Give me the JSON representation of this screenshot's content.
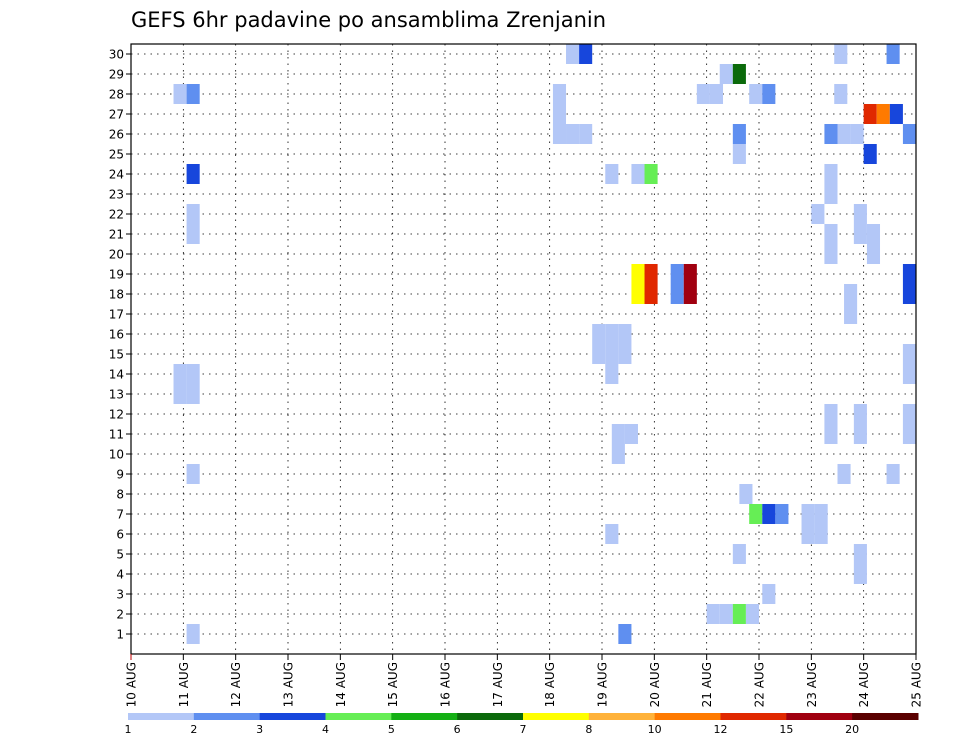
{
  "chart_data": {
    "type": "heatmap",
    "title": "GEFS 6hr padavine po ansamblima Zrenjanin",
    "xlabel": "",
    "ylabel": "",
    "x_ticks": [
      "10 AUG",
      "11 AUG",
      "12 AUG",
      "13 AUG",
      "14 AUG",
      "15 AUG",
      "16 AUG",
      "17 AUG",
      "18 AUG",
      "19 AUG",
      "20 AUG",
      "21 AUG",
      "22 AUG",
      "23 AUG",
      "24 AUG",
      "25 AUG"
    ],
    "x_range_days": [
      0,
      15
    ],
    "steps_per_day": 4,
    "y_members": [
      1,
      30
    ],
    "grid": "dotted",
    "colorbar": {
      "labels": [
        "1",
        "2",
        "3",
        "4",
        "5",
        "6",
        "7",
        "8",
        "10",
        "12",
        "15",
        "20"
      ],
      "colors": [
        "#b3c7f7",
        "#5f8ff0",
        "#1746dc",
        "#66ee55",
        "#14b014",
        "#0b6a0b",
        "#ffff00",
        "#ffb23a",
        "#ff7a00",
        "#e02800",
        "#a00010",
        "#5a0000"
      ]
    },
    "cells": [
      {
        "m": 30,
        "x": 33.75,
        "c": 0
      },
      {
        "m": 30,
        "x": 34.75,
        "c": 2
      },
      {
        "m": 30,
        "x": 54.25,
        "c": 0
      },
      {
        "m": 30,
        "x": 58.25,
        "c": 1
      },
      {
        "m": 29,
        "x": 45.5,
        "c": 0
      },
      {
        "m": 29,
        "x": 46.5,
        "c": 5
      },
      {
        "m": 28,
        "x": 3.75,
        "c": 0
      },
      {
        "m": 28,
        "x": 4.75,
        "c": 1
      },
      {
        "m": 28,
        "x": 32.75,
        "c": 0
      },
      {
        "m": 28,
        "x": 43.75,
        "c": 0
      },
      {
        "m": 28,
        "x": 44.75,
        "c": 0
      },
      {
        "m": 28,
        "x": 47.75,
        "c": 0
      },
      {
        "m": 28,
        "x": 48.75,
        "c": 1
      },
      {
        "m": 28,
        "x": 54.25,
        "c": 0
      },
      {
        "m": 27,
        "x": 32.75,
        "c": 0
      },
      {
        "m": 27,
        "x": 56.5,
        "c": 9
      },
      {
        "m": 27,
        "x": 57.5,
        "c": 8
      },
      {
        "m": 27,
        "x": 58.5,
        "c": 2
      },
      {
        "m": 26,
        "x": 32.75,
        "c": 0
      },
      {
        "m": 26,
        "x": 33.75,
        "c": 0
      },
      {
        "m": 26,
        "x": 34.75,
        "c": 0
      },
      {
        "m": 26,
        "x": 46.5,
        "c": 1
      },
      {
        "m": 26,
        "x": 53.5,
        "c": 1
      },
      {
        "m": 26,
        "x": 54.5,
        "c": 0
      },
      {
        "m": 26,
        "x": 55.5,
        "c": 0
      },
      {
        "m": 26,
        "x": 59.5,
        "c": 1
      },
      {
        "m": 25,
        "x": 46.5,
        "c": 0
      },
      {
        "m": 25,
        "x": 56.5,
        "c": 2
      },
      {
        "m": 24,
        "x": 4.75,
        "c": 2
      },
      {
        "m": 24,
        "x": 36.75,
        "c": 0
      },
      {
        "m": 24,
        "x": 38.75,
        "c": 0
      },
      {
        "m": 24,
        "x": 39.75,
        "c": 3
      },
      {
        "m": 24,
        "x": 53.5,
        "c": 0
      },
      {
        "m": 23,
        "x": 53.5,
        "c": 0
      },
      {
        "m": 22,
        "x": 4.75,
        "c": 0
      },
      {
        "m": 22,
        "x": 52.5,
        "c": 0
      },
      {
        "m": 22,
        "x": 55.75,
        "c": 0
      },
      {
        "m": 21,
        "x": 4.75,
        "c": 0
      },
      {
        "m": 21,
        "x": 53.5,
        "c": 0
      },
      {
        "m": 21,
        "x": 55.75,
        "c": 0
      },
      {
        "m": 21,
        "x": 56.75,
        "c": 0
      },
      {
        "m": 20,
        "x": 53.5,
        "c": 0
      },
      {
        "m": 20,
        "x": 56.75,
        "c": 0
      },
      {
        "m": 19,
        "x": 38.75,
        "c": 6
      },
      {
        "m": 19,
        "x": 39.75,
        "c": 9
      },
      {
        "m": 19,
        "x": 41.75,
        "c": 1
      },
      {
        "m": 19,
        "x": 42.75,
        "c": 10
      },
      {
        "m": 19,
        "x": 59.5,
        "c": 2
      },
      {
        "m": 18,
        "x": 38.75,
        "c": 6
      },
      {
        "m": 18,
        "x": 39.75,
        "c": 9
      },
      {
        "m": 18,
        "x": 41.75,
        "c": 1
      },
      {
        "m": 18,
        "x": 42.75,
        "c": 10
      },
      {
        "m": 18,
        "x": 59.5,
        "c": 2
      },
      {
        "m": 18,
        "x": 55,
        "c": 0
      },
      {
        "m": 17,
        "x": 55,
        "c": 0
      },
      {
        "m": 16,
        "x": 35.75,
        "c": 0
      },
      {
        "m": 16,
        "x": 36.75,
        "c": 0
      },
      {
        "m": 16,
        "x": 37.75,
        "c": 0
      },
      {
        "m": 15,
        "x": 35.75,
        "c": 0
      },
      {
        "m": 15,
        "x": 36.75,
        "c": 0
      },
      {
        "m": 15,
        "x": 37.75,
        "c": 0
      },
      {
        "m": 15,
        "x": 59.5,
        "c": 0
      },
      {
        "m": 14,
        "x": 36.75,
        "c": 0
      },
      {
        "m": 14,
        "x": 3.75,
        "c": 0
      },
      {
        "m": 14,
        "x": 4.75,
        "c": 0
      },
      {
        "m": 14,
        "x": 59.5,
        "c": 0
      },
      {
        "m": 13,
        "x": 3.75,
        "c": 0
      },
      {
        "m": 13,
        "x": 4.75,
        "c": 0
      },
      {
        "m": 12,
        "x": 53.5,
        "c": 0
      },
      {
        "m": 12,
        "x": 55.75,
        "c": 0
      },
      {
        "m": 12,
        "x": 59.5,
        "c": 0
      },
      {
        "m": 11,
        "x": 37.25,
        "c": 0
      },
      {
        "m": 11,
        "x": 38.25,
        "c": 0
      },
      {
        "m": 11,
        "x": 53.5,
        "c": 0
      },
      {
        "m": 11,
        "x": 55.75,
        "c": 0
      },
      {
        "m": 11,
        "x": 59.5,
        "c": 0
      },
      {
        "m": 10,
        "x": 37.25,
        "c": 0
      },
      {
        "m": 9,
        "x": 4.75,
        "c": 0
      },
      {
        "m": 9,
        "x": 54.5,
        "c": 0
      },
      {
        "m": 9,
        "x": 58.25,
        "c": 0
      },
      {
        "m": 8,
        "x": 47,
        "c": 0
      },
      {
        "m": 7,
        "x": 47.75,
        "c": 3
      },
      {
        "m": 7,
        "x": 48.75,
        "c": 2
      },
      {
        "m": 7,
        "x": 49.75,
        "c": 1
      },
      {
        "m": 7,
        "x": 51.75,
        "c": 0
      },
      {
        "m": 7,
        "x": 52.75,
        "c": 0
      },
      {
        "m": 6,
        "x": 36.75,
        "c": 0
      },
      {
        "m": 6,
        "x": 51.75,
        "c": 0
      },
      {
        "m": 6,
        "x": 52.75,
        "c": 0
      },
      {
        "m": 5,
        "x": 46.5,
        "c": 0
      },
      {
        "m": 5,
        "x": 55.75,
        "c": 0
      },
      {
        "m": 4,
        "x": 55.75,
        "c": 0
      },
      {
        "m": 3,
        "x": 48.75,
        "c": 0
      },
      {
        "m": 2,
        "x": 44.5,
        "c": 0
      },
      {
        "m": 2,
        "x": 45.5,
        "c": 0
      },
      {
        "m": 2,
        "x": 46.5,
        "c": 3
      },
      {
        "m": 2,
        "x": 47.5,
        "c": 0
      },
      {
        "m": 1,
        "x": 4.75,
        "c": 0
      },
      {
        "m": 1,
        "x": 37.75,
        "c": 1
      }
    ]
  }
}
